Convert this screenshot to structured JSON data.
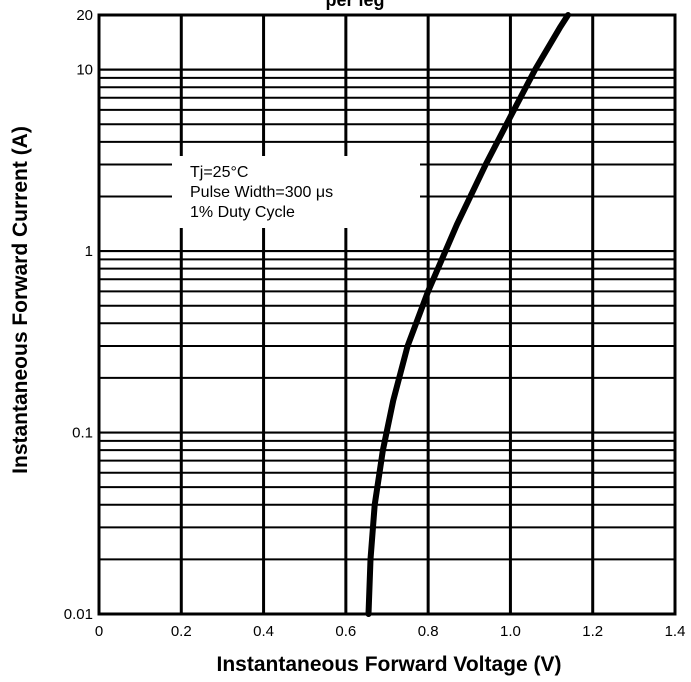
{
  "chart_data": {
    "type": "line",
    "title": "per leg",
    "xlabel": "Instantaneous Forward Voltage (V)",
    "ylabel": "Instantaneous Forward Current (A)",
    "xlim": [
      0,
      1.4
    ],
    "ylim": [
      0.01,
      20
    ],
    "yscale": "log",
    "grid": true,
    "x_ticks": [
      0,
      0.2,
      0.4,
      0.6,
      0.8,
      1.0,
      1.2,
      1.4
    ],
    "x_tick_labels": [
      "0",
      "0.2",
      "0.4",
      "0.6",
      "0.8",
      "1.0",
      "1.2",
      "1.4"
    ],
    "y_ticks": [
      0.01,
      0.1,
      1,
      10,
      20
    ],
    "y_tick_labels": [
      "0.01",
      "0.1",
      "1",
      "10",
      "20"
    ],
    "annotation": [
      "Tj=25°C",
      "Pulse Width=300 μs",
      "1% Duty Cycle"
    ],
    "series": [
      {
        "x": [
          0.655,
          0.66,
          0.67,
          0.69,
          0.715,
          0.75,
          0.8,
          0.87,
          0.94,
          1.0,
          1.06,
          1.12,
          1.14
        ],
        "y": [
          0.01,
          0.02,
          0.04,
          0.08,
          0.15,
          0.3,
          0.6,
          1.4,
          3.0,
          5.5,
          10,
          17,
          20
        ]
      }
    ]
  }
}
